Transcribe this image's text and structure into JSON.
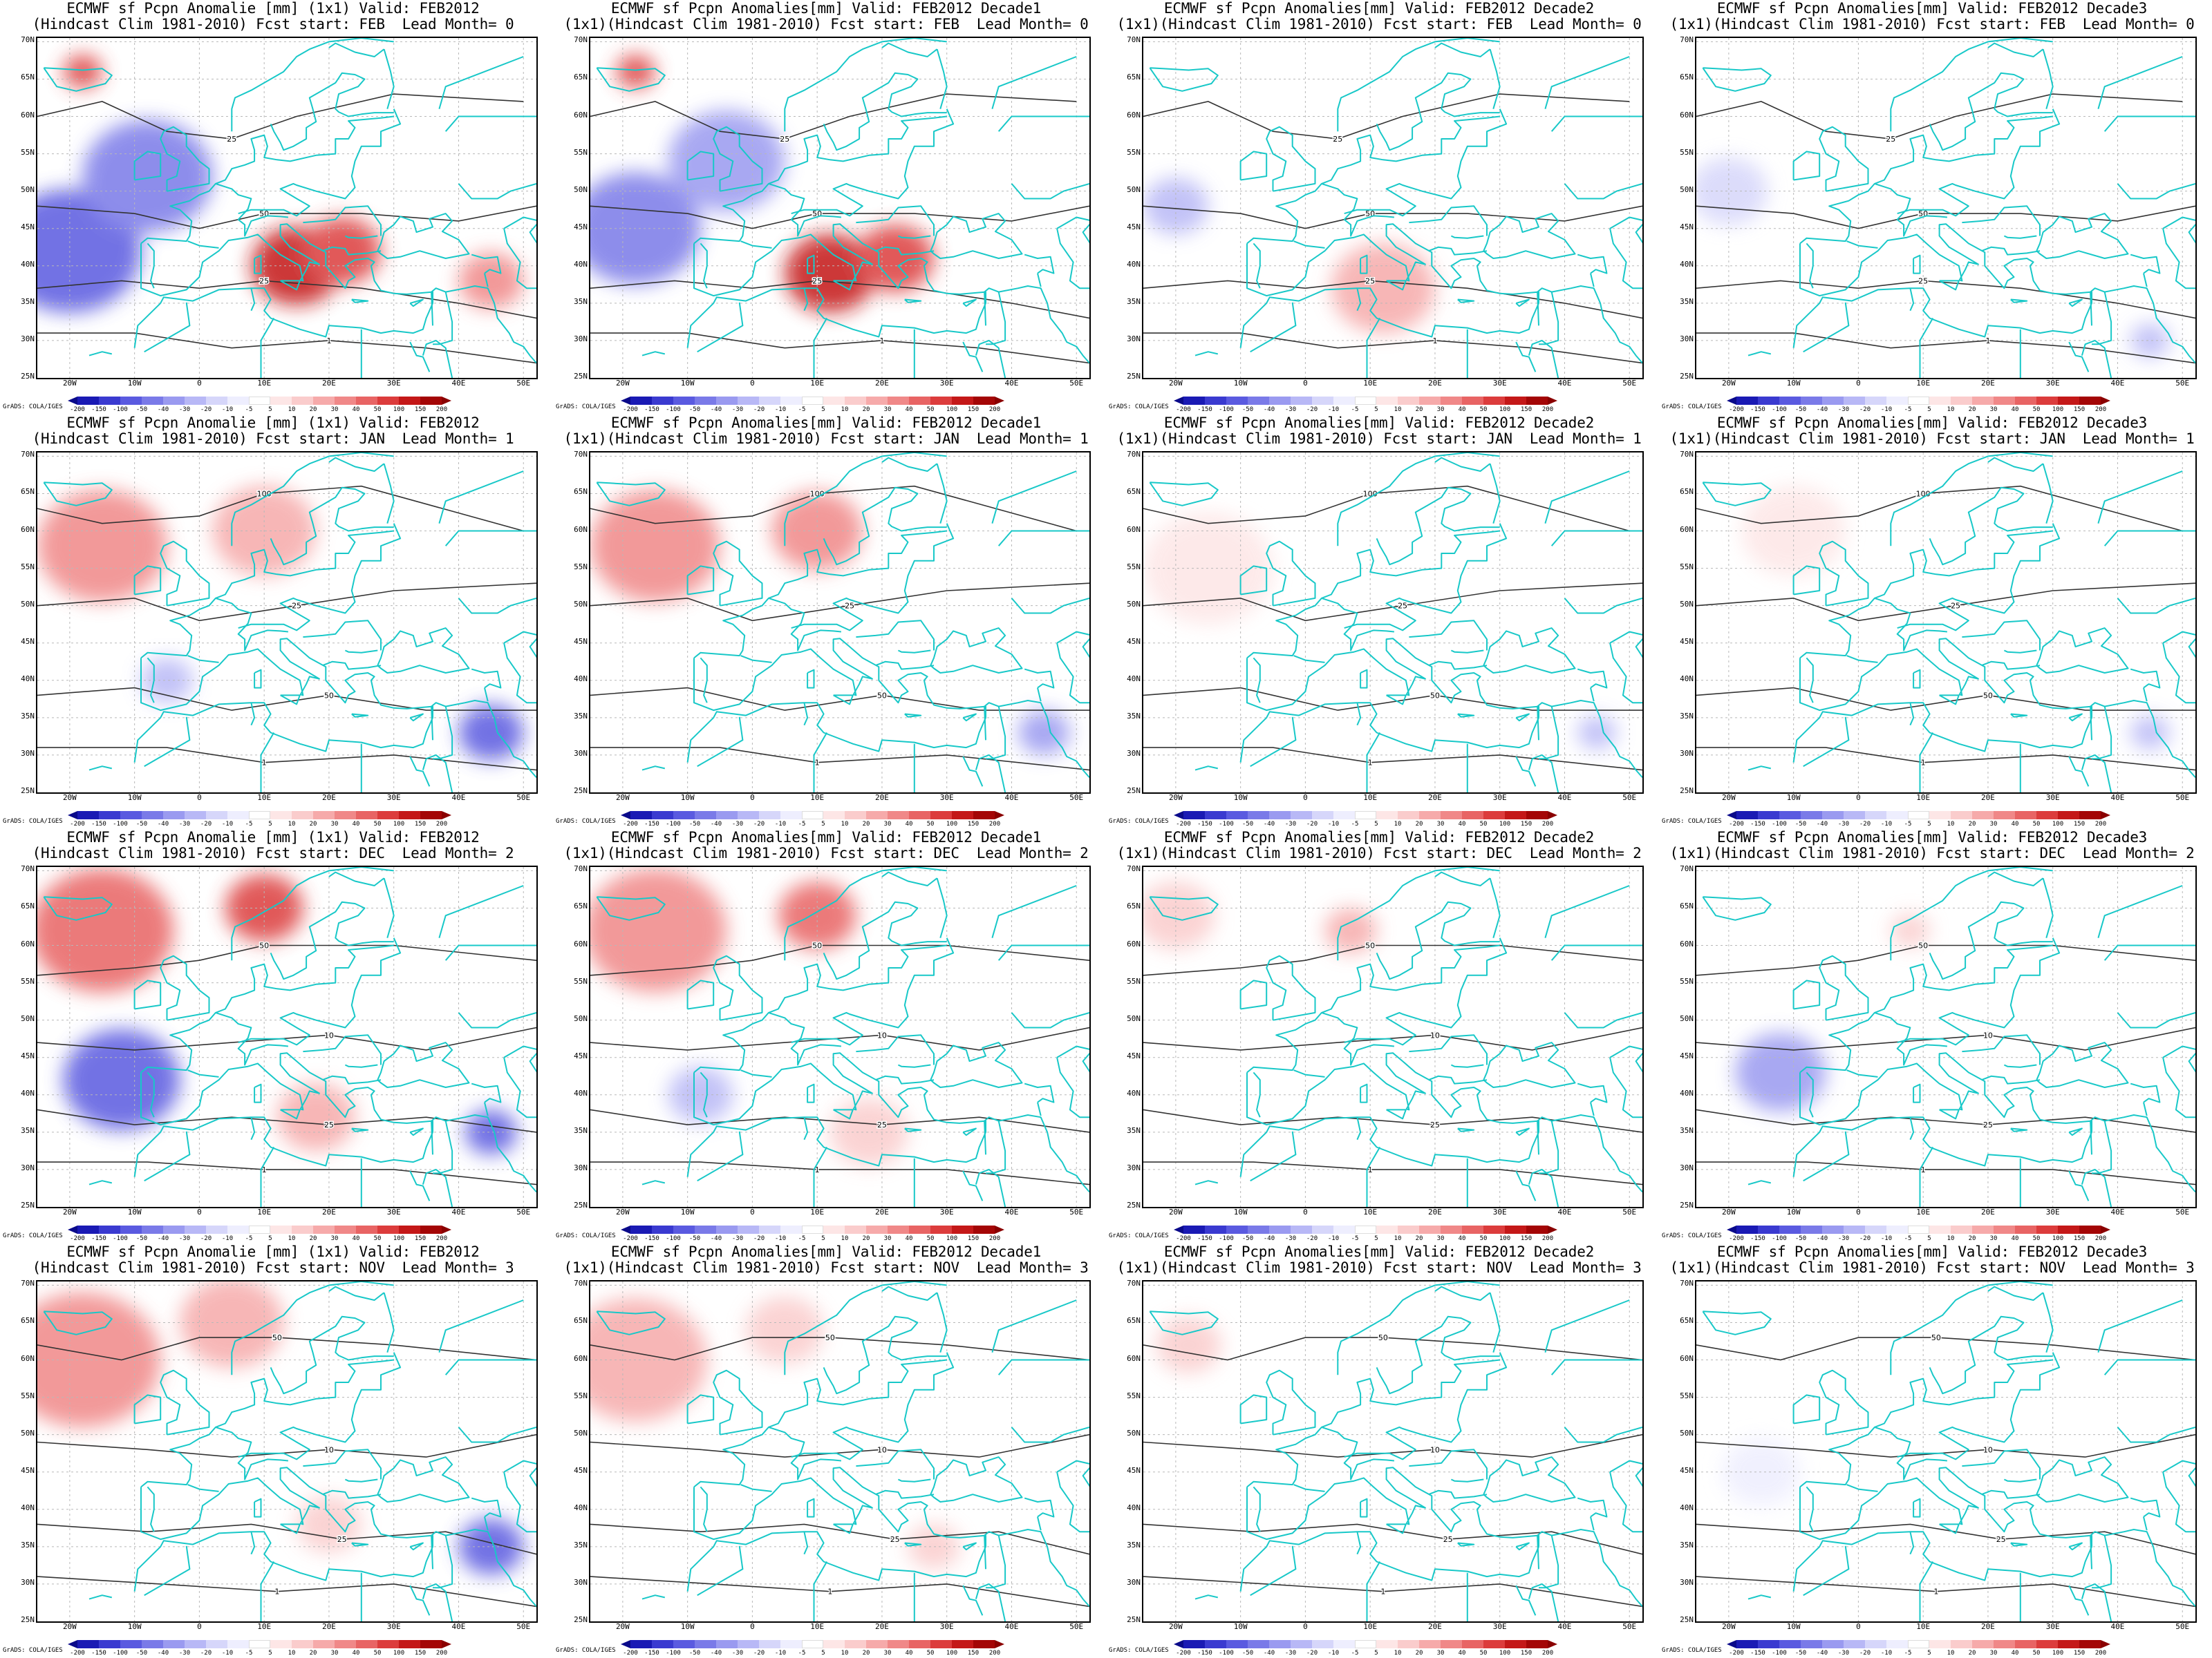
{
  "rows": [
    {
      "start": "FEB",
      "lead": "0",
      "titles": [
        [
          "ECMWF sf Pcpn Anomalie [mm] (1x1) Valid: FEB2012",
          "(Hindcast Clim 1981-2010) Fcst start: FEB  Lead Month= 0"
        ],
        [
          "ECMWF sf Pcpn Anomalies[mm] Valid: FEB2012 Decade1",
          "(1x1)(Hindcast Clim 1981-2010) Fcst start: FEB  Lead Month= 0"
        ],
        [
          "ECMWF sf Pcpn Anomalies[mm] Valid: FEB2012 Decade2",
          "(1x1)(Hindcast Clim 1981-2010) Fcst start: FEB  Lead Month= 0"
        ],
        [
          "ECMWF sf Pcpn Anomalies[mm] Valid: FEB2012 Decade3",
          "(1x1)(Hindcast Clim 1981-2010) Fcst start: FEB  Lead Month= 0"
        ]
      ]
    },
    {
      "start": "JAN",
      "lead": "1",
      "titles": [
        [
          "ECMWF sf Pcpn Anomalie [mm] (1x1) Valid: FEB2012",
          "(Hindcast Clim 1981-2010) Fcst start: JAN  Lead Month= 1"
        ],
        [
          "ECMWF sf Pcpn Anomalies[mm] Valid: FEB2012 Decade1",
          "(1x1)(Hindcast Clim 1981-2010) Fcst start: JAN  Lead Month= 1"
        ],
        [
          "ECMWF sf Pcpn Anomalies[mm] Valid: FEB2012 Decade2",
          "(1x1)(Hindcast Clim 1981-2010) Fcst start: JAN  Lead Month= 1"
        ],
        [
          "ECMWF sf Pcpn Anomalies[mm] Valid: FEB2012 Decade3",
          "(1x1)(Hindcast Clim 1981-2010) Fcst start: JAN  Lead Month= 1"
        ]
      ]
    },
    {
      "start": "DEC",
      "lead": "2",
      "titles": [
        [
          "ECMWF sf Pcpn Anomalie [mm] (1x1) Valid: FEB2012",
          "(Hindcast Clim 1981-2010) Fcst start: DEC  Lead Month= 2"
        ],
        [
          "ECMWF sf Pcpn Anomalies[mm] Valid: FEB2012 Decade1",
          "(1x1)(Hindcast Clim 1981-2010) Fcst start: DEC  Lead Month= 2"
        ],
        [
          "ECMWF sf Pcpn Anomalies[mm] Valid: FEB2012 Decade2",
          "(1x1)(Hindcast Clim 1981-2010) Fcst start: DEC  Lead Month= 2"
        ],
        [
          "ECMWF sf Pcpn Anomalies[mm] Valid: FEB2012 Decade3",
          "(1x1)(Hindcast Clim 1981-2010) Fcst start: DEC  Lead Month= 2"
        ]
      ]
    },
    {
      "start": "NOV",
      "lead": "3",
      "titles": [
        [
          "ECMWF sf Pcpn Anomalie [mm] (1x1) Valid: FEB2012",
          "(Hindcast Clim 1981-2010) Fcst start: NOV  Lead Month= 3"
        ],
        [
          "ECMWF sf Pcpn Anomalies[mm] Valid: FEB2012 Decade1",
          "(1x1)(Hindcast Clim 1981-2010) Fcst start: NOV  Lead Month= 3"
        ],
        [
          "ECMWF sf Pcpn Anomalies[mm] Valid: FEB2012 Decade2",
          "(1x1)(Hindcast Clim 1981-2010) Fcst start: NOV  Lead Month= 3"
        ],
        [
          "ECMWF sf Pcpn Anomalies[mm] Valid: FEB2012 Decade3",
          "(1x1)(Hindcast Clim 1981-2010) Fcst start: NOV  Lead Month= 3"
        ]
      ]
    }
  ],
  "lat_labels": [
    "70N",
    "65N",
    "60N",
    "55N",
    "50N",
    "45N",
    "40N",
    "35N",
    "30N",
    "25N"
  ],
  "lon_labels": [
    "20W",
    "10W",
    "0",
    "10E",
    "20E",
    "30E",
    "40E",
    "50E"
  ],
  "credit": "GrADS: COLA/IGES",
  "colorbar": {
    "ticks": [
      "-200",
      "-150",
      "-100",
      "-50",
      "-40",
      "-30",
      "-20",
      "-10",
      "-5",
      "5",
      "10",
      "20",
      "30",
      "40",
      "50",
      "100",
      "150",
      "200"
    ],
    "colors": [
      "#0a0a8a",
      "#1a1ab4",
      "#3a3ad0",
      "#5a5ae0",
      "#7a7ae8",
      "#9a9af0",
      "#b8b8f6",
      "#d6d6fa",
      "#eeeefe",
      "#ffffff",
      "#fde6e6",
      "#facccc",
      "#f6aaaa",
      "#f08888",
      "#e86464",
      "#dc3c3c",
      "#c41818",
      "#a40606",
      "#8a0000"
    ]
  },
  "map_colors": {
    "coast": "#18c8c8",
    "contour": "#333333",
    "grid": "#b8b8b8"
  },
  "anomaly_patches": [
    [
      [
        {
          "lon": -20,
          "lat": 42,
          "v": -60,
          "r": 11
        },
        {
          "lon": -8,
          "lat": 52,
          "v": -40,
          "r": 10
        },
        {
          "lon": 15,
          "lat": 40,
          "v": 150,
          "r": 7
        },
        {
          "lon": 22,
          "lat": 42,
          "v": 100,
          "r": 6
        },
        {
          "lon": -18,
          "lat": 66,
          "v": 80,
          "r": 3
        },
        {
          "lon": 45,
          "lat": 38,
          "v": 40,
          "r": 5
        }
      ],
      [
        {
          "lon": -18,
          "lat": 45,
          "v": -40,
          "r": 10
        },
        {
          "lon": -4,
          "lat": 54,
          "v": -30,
          "r": 9
        },
        {
          "lon": 12,
          "lat": 39,
          "v": 150,
          "r": 7
        },
        {
          "lon": 22,
          "lat": 41,
          "v": 100,
          "r": 6
        },
        {
          "lon": -18,
          "lat": 66,
          "v": 80,
          "r": 3
        }
      ],
      [
        {
          "lon": -20,
          "lat": 48,
          "v": -20,
          "r": 5
        },
        {
          "lon": 12,
          "lat": 37,
          "v": 30,
          "r": 8
        }
      ],
      [
        {
          "lon": -20,
          "lat": 50,
          "v": -10,
          "r": 6
        },
        {
          "lon": 45,
          "lat": 30,
          "v": -20,
          "r": 3
        }
      ]
    ],
    [
      [
        {
          "lon": -15,
          "lat": 58,
          "v": 40,
          "r": 10
        },
        {
          "lon": 10,
          "lat": 60,
          "v": 30,
          "r": 8
        },
        {
          "lon": 45,
          "lat": 33,
          "v": -60,
          "r": 5
        },
        {
          "lon": -5,
          "lat": 40,
          "v": -20,
          "r": 4
        }
      ],
      [
        {
          "lon": -15,
          "lat": 58,
          "v": 40,
          "r": 10
        },
        {
          "lon": 10,
          "lat": 60,
          "v": 40,
          "r": 7
        },
        {
          "lon": 45,
          "lat": 33,
          "v": -30,
          "r": 4
        }
      ],
      [
        {
          "lon": -15,
          "lat": 55,
          "v": 10,
          "r": 10
        },
        {
          "lon": 45,
          "lat": 33,
          "v": -20,
          "r": 3
        }
      ],
      [
        {
          "lon": -10,
          "lat": 60,
          "v": 10,
          "r": 8
        },
        {
          "lon": 45,
          "lat": 33,
          "v": -20,
          "r": 3
        }
      ]
    ],
    [
      [
        {
          "lon": -15,
          "lat": 62,
          "v": 50,
          "r": 11
        },
        {
          "lon": 10,
          "lat": 65,
          "v": 100,
          "r": 6
        },
        {
          "lon": -12,
          "lat": 42,
          "v": -60,
          "r": 9
        },
        {
          "lon": 45,
          "lat": 35,
          "v": -60,
          "r": 4
        },
        {
          "lon": 18,
          "lat": 37,
          "v": 30,
          "r": 6
        }
      ],
      [
        {
          "lon": -15,
          "lat": 62,
          "v": 40,
          "r": 11
        },
        {
          "lon": 10,
          "lat": 64,
          "v": 50,
          "r": 6
        },
        {
          "lon": -8,
          "lat": 40,
          "v": -20,
          "r": 5
        },
        {
          "lon": 18,
          "lat": 35,
          "v": 20,
          "r": 6
        }
      ],
      [
        {
          "lon": -20,
          "lat": 64,
          "v": 20,
          "r": 6
        },
        {
          "lon": 7,
          "lat": 62,
          "v": 30,
          "r": 4
        }
      ],
      [
        {
          "lon": -12,
          "lat": 43,
          "v": -30,
          "r": 7
        },
        {
          "lon": 8,
          "lat": 62,
          "v": 20,
          "r": 3
        }
      ]
    ],
    [
      [
        {
          "lon": -18,
          "lat": 60,
          "v": 40,
          "r": 12
        },
        {
          "lon": 5,
          "lat": 65,
          "v": 30,
          "r": 8
        },
        {
          "lon": 45,
          "lat": 35,
          "v": -50,
          "r": 5
        },
        {
          "lon": 20,
          "lat": 38,
          "v": 20,
          "r": 5
        }
      ],
      [
        {
          "lon": -18,
          "lat": 60,
          "v": 30,
          "r": 11
        },
        {
          "lon": 5,
          "lat": 64,
          "v": 20,
          "r": 6
        },
        {
          "lon": 28,
          "lat": 35,
          "v": 20,
          "r": 4
        }
      ],
      [
        {
          "lon": -18,
          "lat": 62,
          "v": 20,
          "r": 5
        }
      ],
      [
        {
          "lon": -15,
          "lat": 45,
          "v": -5,
          "r": 6
        }
      ]
    ]
  ]
}
